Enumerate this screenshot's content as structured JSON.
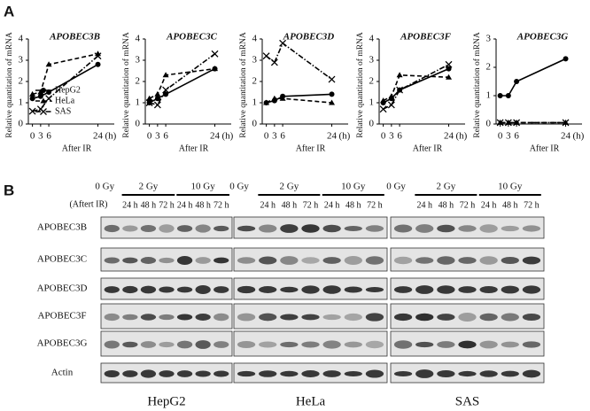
{
  "panel_a_label": "A",
  "chart_data": [
    {
      "type": "line",
      "title": "APOBEC3B",
      "ylabel": "Relative quantitation of mRNA",
      "xlabel": "After IR",
      "x_unit": "(h)",
      "x": [
        0,
        3,
        6,
        24
      ],
      "xlim": [
        -1.5,
        30
      ],
      "xticks": [
        0,
        3,
        6,
        24
      ],
      "ylim": [
        0,
        4
      ],
      "yticks": [
        0,
        1,
        2,
        3,
        4
      ],
      "legend": "lower left",
      "series": [
        {
          "name": "HepG2",
          "color": "#000000",
          "dash": "solid",
          "marker": "circle",
          "values": [
            1.2,
            1.3,
            1.5,
            2.8
          ]
        },
        {
          "name": "HeLa",
          "color": "#000000",
          "dash": "dashed",
          "marker": "triangle",
          "values": [
            1.4,
            1.5,
            2.8,
            3.3
          ]
        },
        {
          "name": "SAS",
          "color": "#000000",
          "dash": "dashdot",
          "marker": "x",
          "values": [
            0.6,
            0.7,
            1.2,
            3.2
          ]
        }
      ]
    },
    {
      "type": "line",
      "title": "APOBEC3C",
      "ylabel": "Relative quantitation of mRNA",
      "xlabel": "After IR",
      "x_unit": "(h)",
      "x": [
        0,
        3,
        6,
        24
      ],
      "xlim": [
        -1.5,
        30
      ],
      "xticks": [
        0,
        3,
        6,
        24
      ],
      "ylim": [
        0,
        4
      ],
      "yticks": [
        0,
        1,
        2,
        3,
        4
      ],
      "legend": false,
      "series": [
        {
          "name": "HepG2",
          "color": "#000000",
          "dash": "solid",
          "marker": "circle",
          "values": [
            1.0,
            1.2,
            1.4,
            2.6
          ]
        },
        {
          "name": "HeLa",
          "color": "#000000",
          "dash": "dashed",
          "marker": "triangle",
          "values": [
            1.2,
            1.4,
            2.3,
            2.6
          ]
        },
        {
          "name": "SAS",
          "color": "#000000",
          "dash": "dashdot",
          "marker": "x",
          "values": [
            1.0,
            0.9,
            1.6,
            3.3
          ]
        }
      ]
    },
    {
      "type": "line",
      "title": "APOBEC3D",
      "ylabel": "Relative quantitation of mRNA",
      "xlabel": "After IR",
      "x_unit": "(h)",
      "x": [
        0,
        3,
        6,
        24
      ],
      "xlim": [
        -1.5,
        30
      ],
      "xticks": [
        0,
        3,
        6,
        24
      ],
      "ylim": [
        0,
        4
      ],
      "yticks": [
        0,
        1,
        2,
        3,
        4
      ],
      "legend": false,
      "series": [
        {
          "name": "HepG2",
          "color": "#000000",
          "dash": "solid",
          "marker": "circle",
          "values": [
            1.0,
            1.1,
            1.3,
            1.4
          ]
        },
        {
          "name": "HeLa",
          "color": "#000000",
          "dash": "dashed",
          "marker": "triangle",
          "values": [
            1.0,
            1.2,
            1.2,
            1.0
          ]
        },
        {
          "name": "SAS",
          "color": "#000000",
          "dash": "dashdot",
          "marker": "x",
          "values": [
            3.2,
            2.9,
            3.8,
            2.1
          ]
        }
      ]
    },
    {
      "type": "line",
      "title": "APOBEC3F",
      "ylabel": "Relative quantitation of mRNA",
      "xlabel": "After IR",
      "x_unit": "(h)",
      "x": [
        0,
        3,
        6,
        24
      ],
      "xlim": [
        -1.5,
        30
      ],
      "xticks": [
        0,
        3,
        6,
        24
      ],
      "ylim": [
        0,
        4
      ],
      "yticks": [
        0,
        1,
        2,
        3,
        4
      ],
      "legend": false,
      "series": [
        {
          "name": "HepG2",
          "color": "#000000",
          "dash": "solid",
          "marker": "circle",
          "values": [
            1.0,
            1.2,
            1.6,
            2.6
          ]
        },
        {
          "name": "HeLa",
          "color": "#000000",
          "dash": "dashed",
          "marker": "triangle",
          "values": [
            1.1,
            1.3,
            2.3,
            2.2
          ]
        },
        {
          "name": "SAS",
          "color": "#000000",
          "dash": "dashdot",
          "marker": "x",
          "values": [
            0.7,
            0.9,
            1.6,
            2.8
          ]
        }
      ]
    },
    {
      "type": "line",
      "title": "APOBEC3G",
      "ylabel": "Relative quantitation of mRNA",
      "xlabel": "After IR",
      "x_unit": "(h)",
      "x": [
        0,
        3,
        6,
        24
      ],
      "xlim": [
        -1.5,
        30
      ],
      "xticks": [
        0,
        3,
        6,
        24
      ],
      "ylim": [
        0,
        3
      ],
      "yticks": [
        0,
        1,
        2,
        3
      ],
      "legend": false,
      "series": [
        {
          "name": "HepG2",
          "color": "#000000",
          "dash": "solid",
          "marker": "circle",
          "values": [
            1.0,
            1.0,
            1.5,
            2.3
          ]
        },
        {
          "name": "HeLa",
          "color": "#000000",
          "dash": "dashed",
          "marker": "triangle",
          "values": [
            0.05,
            0.05,
            0.05,
            0.05
          ]
        },
        {
          "name": "SAS",
          "color": "#000000",
          "dash": "dashdot",
          "marker": "x",
          "values": [
            0.05,
            0.05,
            0.05,
            0.05
          ]
        }
      ]
    }
  ],
  "panel_b": {
    "label": "B",
    "after_ir": "(Aftert IR)",
    "doses": [
      "0 Gy",
      "2 Gy",
      "10 Gy"
    ],
    "times": [
      "24 h",
      "48 h",
      "72 h"
    ],
    "proteins": [
      "APOBEC3B",
      "APOBEC3C",
      "APOBEC3D",
      "APOBEC3F",
      "APOBEC3G",
      "Actin"
    ],
    "cell_lines": [
      "HepG2",
      "HeLa",
      "SAS"
    ]
  }
}
